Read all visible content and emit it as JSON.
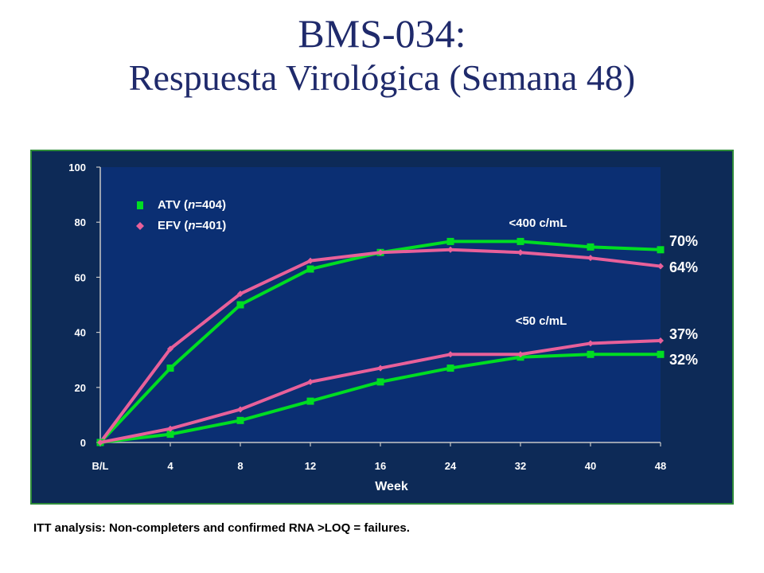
{
  "title_line1": "BMS-034:",
  "title_line2": "Respuesta Virológica (Semana 48)",
  "footnote": "ITT analysis: Non-completers and confirmed RNA >LOQ = failures.",
  "colors": {
    "atv": "#00dd22",
    "efv": "#e8609a",
    "plot_bg": "#0b2f73",
    "frame_bg": "#0d2a57"
  },
  "chart_data": {
    "type": "line",
    "xlabel": "Week",
    "ylabel": "",
    "ylim": [
      0,
      100
    ],
    "yticks": [
      0,
      20,
      40,
      60,
      80,
      100
    ],
    "categories": [
      "B/L",
      "4",
      "8",
      "12",
      "16",
      "24",
      "32",
      "40",
      "48"
    ],
    "legend": [
      {
        "marker": "square",
        "pre": "ATV (",
        "italic": "n",
        "post": "=404)"
      },
      {
        "marker": "diamond",
        "pre": "EFV (",
        "italic": "n",
        "post": "=401)"
      }
    ],
    "groups": [
      "<400 c/mL",
      "<50 c/mL"
    ],
    "series": [
      {
        "name": "ATV (n=404)",
        "group": "<400 c/mL",
        "values": [
          0,
          27,
          50,
          63,
          69,
          73,
          73,
          71,
          70
        ]
      },
      {
        "name": "EFV (n=401)",
        "group": "<400 c/mL",
        "values": [
          0,
          34,
          54,
          66,
          69,
          70,
          69,
          67,
          64
        ]
      },
      {
        "name": "ATV (n=404)",
        "group": "<50 c/mL",
        "values": [
          0,
          3,
          8,
          15,
          22,
          27,
          31,
          32,
          32
        ]
      },
      {
        "name": "EFV (n=401)",
        "group": "<50 c/mL",
        "values": [
          0,
          5,
          12,
          22,
          27,
          32,
          32,
          36,
          37
        ]
      }
    ],
    "end_labels": [
      "70%",
      "64%",
      "37%",
      "32%"
    ]
  }
}
